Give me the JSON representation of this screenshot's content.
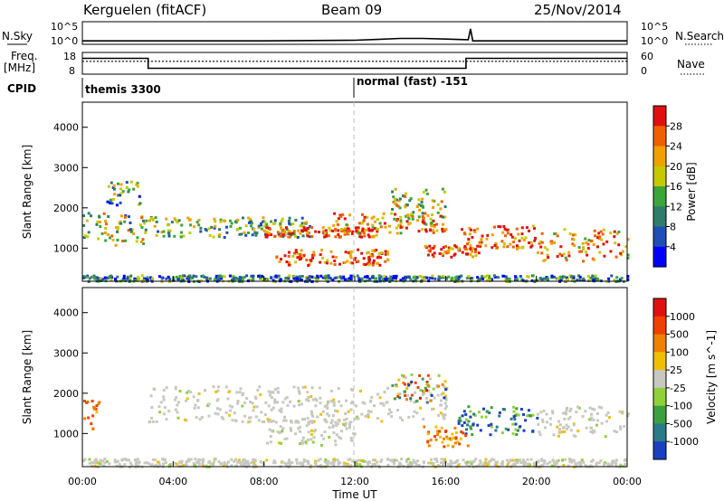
{
  "header": {
    "station": "Kerguelen (fitACF)",
    "beam": "Beam 09",
    "date": "25/Nov/2014"
  },
  "top_labels": {
    "n_sky": "N.Sky",
    "freq": "Freq.",
    "freq_unit": "[MHz]",
    "cpid": "CPID",
    "n_search": "N.Search",
    "nave": "Nave",
    "sky_top": "10^5",
    "sky_bottom": "10^0",
    "search_top": "10^5",
    "search_bottom": "10^0",
    "freq_top": "18",
    "freq_bottom": "8",
    "nave_top": "60",
    "nave_bottom": "0"
  },
  "cpid_labels": {
    "first": "themis 3300",
    "second": "normal (fast) -151"
  },
  "chart_data": [
    {
      "type": "line",
      "name": "N.Sky / N.Search",
      "x_hours": [
        0,
        4,
        8,
        12,
        13,
        14,
        15,
        16,
        17,
        17.1,
        17.2,
        18,
        20,
        24
      ],
      "n_sky_log10": [
        0.6,
        0.6,
        0.6,
        0.75,
        0.95,
        1.2,
        1.2,
        1.05,
        0.9,
        3.5,
        0.6,
        0.6,
        0.6,
        0.6
      ],
      "ylim": [
        0,
        5
      ]
    },
    {
      "type": "line",
      "name": "Freq / Nave",
      "segments_freq_mhz": [
        {
          "x": [
            0,
            2.9
          ],
          "y": 15.5
        },
        {
          "x": [
            2.9,
            16.9
          ],
          "y": 10.5
        },
        {
          "x": [
            16.9,
            24
          ],
          "y": 15.5
        }
      ],
      "segments_nave": [
        {
          "x": [
            0,
            2.9
          ],
          "y": 36
        },
        {
          "x": [
            2.9,
            16.9
          ],
          "y": 36
        },
        {
          "x": [
            16.9,
            24
          ],
          "y": 36
        }
      ],
      "ylim_freq": [
        8,
        18
      ],
      "ylim_nave": [
        0,
        60
      ]
    },
    {
      "type": "heatmap",
      "name": "Power",
      "ylabel": "Slant Range [km]",
      "yticks": [
        "1000",
        "2000",
        "3000",
        "4000"
      ],
      "ylim": [
        200,
        4600
      ],
      "colorbar_label": "Power [dB]",
      "colorbar_ticks": [
        "4",
        "8",
        "12",
        "16",
        "20",
        "24",
        "28"
      ],
      "colorbar_colors": [
        "#0000ff",
        "#1e4fb4",
        "#2e7d6b",
        "#3aa63a",
        "#c8c800",
        "#f0a000",
        "#f06000",
        "#e01010"
      ],
      "bands": [
        {
          "x": [
            0,
            2.9
          ],
          "r": [
            1100,
            1900
          ],
          "level": 0.5
        },
        {
          "x": [
            1,
            2.5
          ],
          "r": [
            2100,
            2700
          ],
          "level": 0.35
        },
        {
          "x": [
            2.9,
            10
          ],
          "r": [
            1300,
            1800
          ],
          "level": 0.45
        },
        {
          "x": [
            8,
            13
          ],
          "r": [
            1300,
            1550
          ],
          "level": 0.9
        },
        {
          "x": [
            11,
            16
          ],
          "r": [
            1400,
            1900
          ],
          "level": 0.7
        },
        {
          "x": [
            8.5,
            13.5
          ],
          "r": [
            600,
            1000
          ],
          "level": 0.8
        },
        {
          "x": [
            15,
            17.5
          ],
          "r": [
            800,
            1100
          ],
          "level": 0.9
        },
        {
          "x": [
            16.5,
            20
          ],
          "r": [
            1000,
            1600
          ],
          "level": 0.85
        },
        {
          "x": [
            20,
            24
          ],
          "r": [
            700,
            1500
          ],
          "level": 0.7
        },
        {
          "x": [
            13.5,
            16
          ],
          "r": [
            1800,
            2500
          ],
          "level": 0.55
        },
        {
          "x": [
            0,
            24
          ],
          "r": [
            200,
            350
          ],
          "level": 0.3
        }
      ]
    },
    {
      "type": "heatmap",
      "name": "Velocity",
      "ylabel": "Slant Range [km]",
      "yticks": [
        "1000",
        "2000",
        "3000",
        "4000"
      ],
      "ylim": [
        200,
        4600
      ],
      "colorbar_label": "Velocity [m s^-1]",
      "colorbar_ticks": [
        "1000",
        "500",
        "100",
        "25",
        "-25",
        "-100",
        "-500",
        "-1000"
      ],
      "colorbar_colors": [
        "#1a3fbf",
        "#2b7a88",
        "#3aa040",
        "#8fd13a",
        "#c8c8c0",
        "#f0c000",
        "#f08000",
        "#f04000",
        "#e01010"
      ],
      "bands": [
        {
          "x": [
            0,
            0.8
          ],
          "r": [
            1100,
            1900
          ],
          "vel": "neg"
        },
        {
          "x": [
            2.9,
            16
          ],
          "r": [
            1300,
            2200
          ],
          "vel": "grey"
        },
        {
          "x": [
            8,
            12
          ],
          "r": [
            700,
            1400
          ],
          "vel": "grey"
        },
        {
          "x": [
            13.5,
            16
          ],
          "r": [
            1800,
            2500
          ],
          "vel": "mix"
        },
        {
          "x": [
            16.5,
            20
          ],
          "r": [
            1000,
            1700
          ],
          "vel": "pos"
        },
        {
          "x": [
            20,
            24
          ],
          "r": [
            900,
            1700
          ],
          "vel": "grey"
        },
        {
          "x": [
            15,
            17
          ],
          "r": [
            700,
            1200
          ],
          "vel": "neg"
        },
        {
          "x": [
            0,
            24
          ],
          "r": [
            200,
            400
          ],
          "vel": "grey"
        }
      ]
    }
  ],
  "x_axis": {
    "ticks": [
      "00:00",
      "04:00",
      "08:00",
      "12:00",
      "16:00",
      "20:00",
      "00:00"
    ],
    "label": "Time UT",
    "range_hours": [
      0,
      24
    ]
  }
}
